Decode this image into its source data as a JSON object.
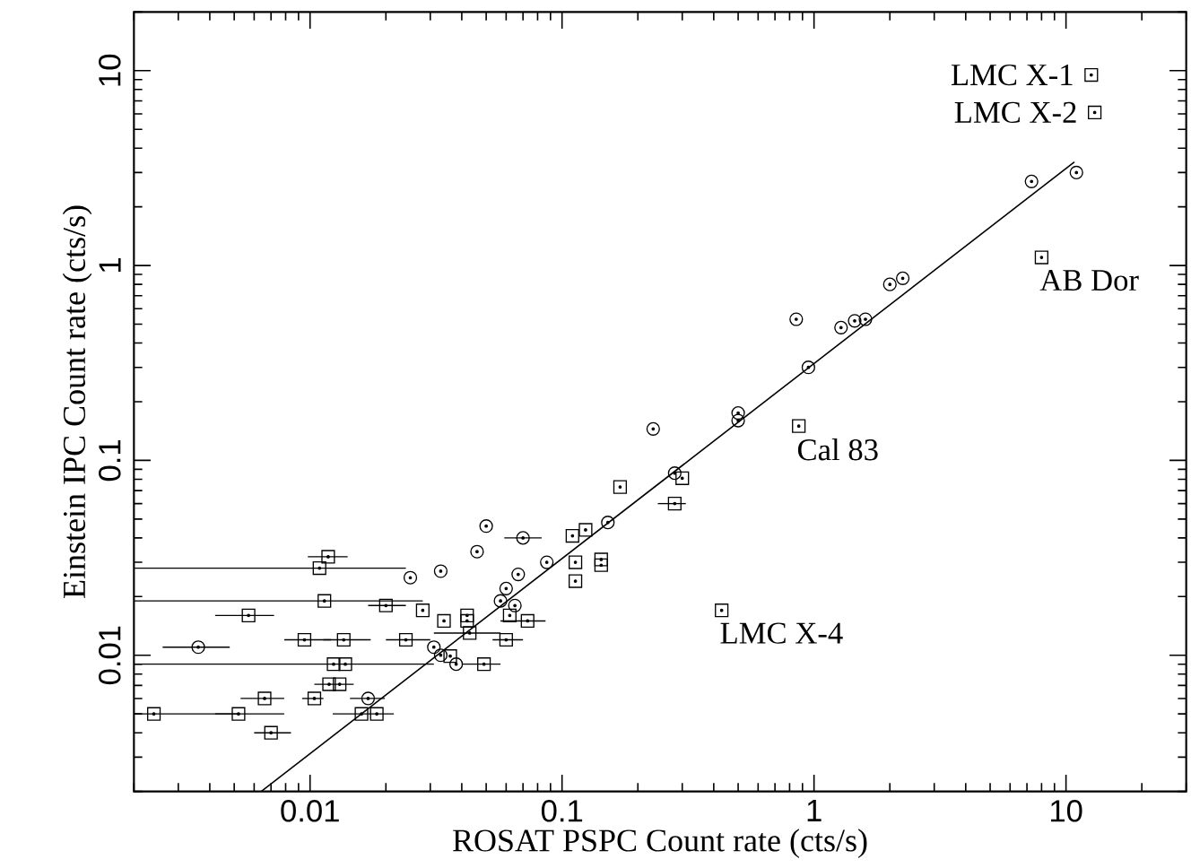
{
  "chart_data": {
    "type": "scatter",
    "xlabel": "ROSAT PSPC Count rate (cts/s)",
    "ylabel": "Einstein IPC Count rate (cts/s)",
    "log": "xy",
    "xlim": [
      0.002,
      30
    ],
    "ylim": [
      0.002,
      20
    ],
    "xticks": [
      0.01,
      0.1,
      1,
      10
    ],
    "yticks": [
      0.01,
      0.1,
      1,
      10
    ],
    "series": [
      {
        "marker": "circle",
        "color": "#000000",
        "x": [
          0.85,
          1.28,
          1.45,
          1.6,
          2.0,
          2.25,
          7.3,
          11,
          0.95,
          0.5,
          0.5,
          0.23,
          0.28,
          0.152,
          0.087,
          0.07,
          0.05,
          0.046,
          0.033,
          0.025,
          0.067,
          0.06,
          0.057,
          0.065,
          0.031,
          0.033,
          0.038,
          0.0036,
          0.017
        ],
        "values": [
          0.53,
          0.48,
          0.52,
          0.53,
          0.8,
          0.86,
          2.7,
          3.0,
          0.3,
          0.175,
          0.16,
          0.145,
          0.086,
          0.048,
          0.03,
          0.04,
          0.046,
          0.034,
          0.027,
          0.025,
          0.026,
          0.022,
          0.019,
          0.018,
          0.011,
          0.01,
          0.009,
          0.011,
          0.006
        ],
        "xerrors": [
          null,
          null,
          null,
          null,
          null,
          null,
          null,
          null,
          null,
          null,
          null,
          null,
          null,
          null,
          null,
          [
            0.059,
            0.083
          ],
          null,
          null,
          null,
          null,
          null,
          null,
          null,
          null,
          null,
          null,
          null,
          [
            0.0026,
            0.0048
          ],
          [
            0.0144,
            0.0198
          ]
        ]
      },
      {
        "marker": "square",
        "color": "#000000",
        "x": [
          12.6,
          13,
          8.0,
          0.87,
          0.43,
          0.3,
          0.28,
          0.17,
          0.124,
          0.11,
          0.113,
          0.113,
          0.143,
          0.143,
          0.0118,
          0.0109,
          0.0114,
          0.02,
          0.028,
          0.0057,
          0.034,
          0.042,
          0.042,
          0.062,
          0.073,
          0.043,
          0.06,
          0.0095,
          0.0136,
          0.024,
          0.036,
          0.0124,
          0.0138,
          0.049,
          0.0119,
          0.0131,
          0.0104,
          0.0066,
          0.0024,
          0.0052,
          0.016,
          0.0184,
          0.007
        ],
        "values": [
          9.5,
          6.1,
          1.1,
          0.15,
          0.017,
          0.081,
          0.06,
          0.073,
          0.044,
          0.041,
          0.03,
          0.024,
          0.031,
          0.029,
          0.032,
          0.028,
          0.019,
          0.018,
          0.017,
          0.016,
          0.015,
          0.016,
          0.015,
          0.016,
          0.015,
          0.013,
          0.012,
          0.012,
          0.012,
          0.012,
          0.0099,
          0.009,
          0.009,
          0.009,
          0.0071,
          0.0071,
          0.006,
          0.006,
          0.005,
          0.005,
          0.005,
          0.005,
          0.004
        ],
        "xerrors": [
          null,
          null,
          null,
          null,
          null,
          null,
          [
            0.24,
            0.31
          ],
          null,
          null,
          null,
          null,
          null,
          null,
          null,
          [
            0.0098,
            0.0141
          ],
          [
            0.002,
            0.024
          ],
          [
            0.002,
            0.028
          ],
          [
            0.017,
            0.024
          ],
          null,
          [
            0.0042,
            0.0072
          ],
          null,
          null,
          null,
          null,
          [
            0.057,
            0.086
          ],
          [
            0.031,
            0.057
          ],
          [
            0.053,
            0.07
          ],
          [
            0.0079,
            0.0121
          ],
          [
            0.0113,
            0.0174
          ],
          [
            0.02,
            0.03
          ],
          null,
          [
            0.002,
            0.031
          ],
          null,
          [
            0.04,
            0.057
          ],
          [
            0.0104,
            0.0149
          ],
          null,
          [
            0.0093,
            0.0113
          ],
          [
            0.0053,
            0.0079
          ],
          [
            0.002,
            0.0052
          ],
          [
            0.0042,
            0.0079
          ],
          [
            0.0123,
            0.0215
          ],
          null,
          [
            0.006,
            0.0084
          ]
        ]
      },
      {
        "type": "line",
        "marker": "none",
        "line_style": "solid",
        "color": "#000000",
        "x": [
          0.0064,
          10.8
        ],
        "values": [
          0.002,
          3.4
        ]
      }
    ],
    "annotations": [
      {
        "text": "LMC X-1",
        "x": 12.6,
        "y": 9.5
      },
      {
        "text": "LMC X-2",
        "x": 13,
        "y": 6.1
      },
      {
        "text": "AB Dor",
        "x": 8.0,
        "y": 1.1
      },
      {
        "text": "Cal 83",
        "x": 0.87,
        "y": 0.15
      },
      {
        "text": "LMC X-4",
        "x": 0.43,
        "y": 0.017
      }
    ]
  }
}
